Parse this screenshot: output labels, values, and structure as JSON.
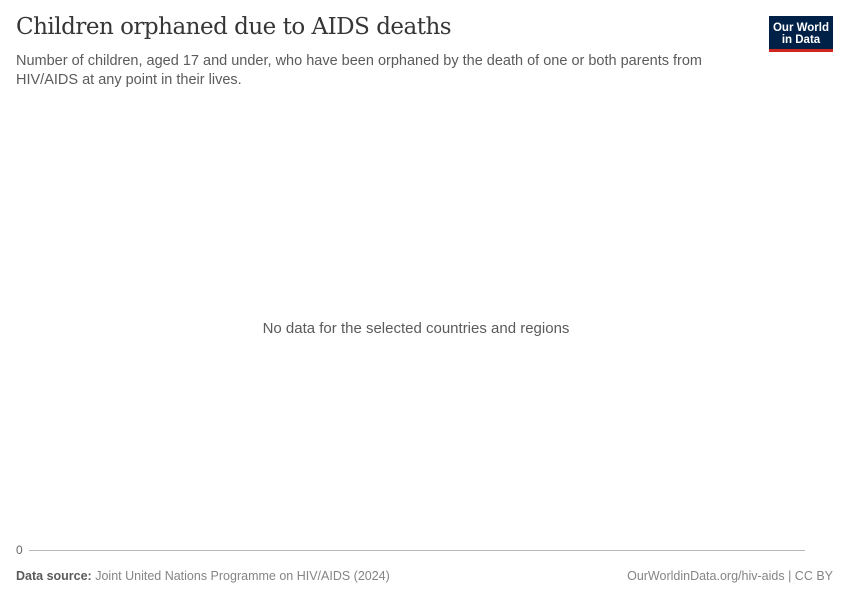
{
  "header": {
    "title": "Children orphaned due to AIDS deaths",
    "subtitle": "Number of children, aged 17 and under, who have been orphaned by the death of one or both parents from HIV/AIDS at any point in their lives.",
    "logo": {
      "line1": "Our World",
      "line2": "in Data",
      "bg_color": "#002147",
      "accent_color": "#ce261e"
    }
  },
  "chart_data": {
    "type": "line",
    "title": "Children orphaned due to AIDS deaths",
    "y_ticks": [
      "0"
    ],
    "series": [],
    "message": "No data for the selected countries and regions",
    "grid": false
  },
  "footer": {
    "source_label": "Data source:",
    "source_text": "Joint United Nations Programme on HIV/AIDS (2024)",
    "url": "OurWorldinData.org/hiv-aids",
    "separator": "|",
    "license": "CC BY"
  }
}
